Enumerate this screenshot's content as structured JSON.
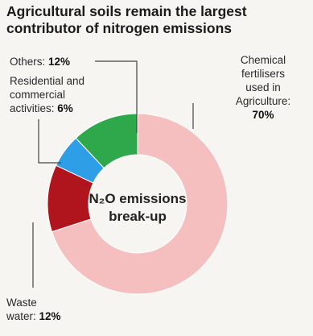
{
  "chart_data": {
    "type": "pie",
    "title_lines": [
      "Agricultural soils remain the largest",
      "contributor of nitrogen emissions"
    ],
    "center_label_lines": [
      "N₂O emissions",
      "break-up"
    ],
    "slices": [
      {
        "name": "Chemical fertilisers used in Agriculture",
        "value": 70,
        "color": "#f6bfbf"
      },
      {
        "name": "Waste water",
        "value": 12,
        "color": "#b0151d"
      },
      {
        "name": "Residential and commercial activities",
        "value": 6,
        "color": "#2e9fe6"
      },
      {
        "name": "Others",
        "value": 12,
        "color": "#2ea84a"
      }
    ],
    "labels": {
      "others_text": "Others: ",
      "others_value": "12%",
      "res_line1": "Residential and",
      "res_line2": "commercial",
      "res_line3": "activities: ",
      "res_value": "6%",
      "chem_line1": "Chemical",
      "chem_line2": "fertilisers",
      "chem_line3": "used in",
      "chem_line4": "Agriculture:",
      "chem_value": "70%",
      "waste_line1": "Waste",
      "waste_line2": "water: ",
      "waste_value": "12%"
    }
  }
}
